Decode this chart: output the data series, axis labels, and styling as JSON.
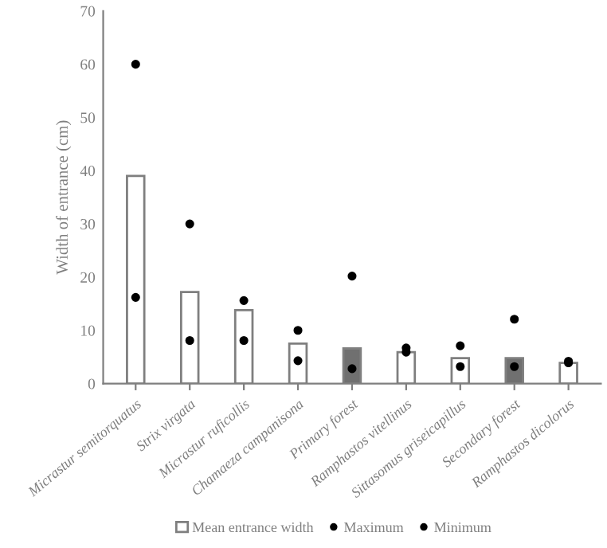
{
  "chart_data": {
    "type": "bar",
    "ylabel": "Width of entrance (cm)",
    "categories": [
      "Micrastur semitorquatus",
      "Strix virgata",
      "Micrastur ruficollis",
      "Chamaeza campanisona",
      "Primary forest",
      "Ramphastos vitellinus",
      "Sittasomus griseicapillus",
      "Secondary forest",
      "Ramphastos dicolorus"
    ],
    "series": [
      {
        "name": "Mean entrance width",
        "colors": [
          "#ffffff",
          "#ffffff",
          "#ffffff",
          "#ffffff",
          "#707070",
          "#ffffff",
          "#ffffff",
          "#707070",
          "#ffffff"
        ],
        "values": [
          39,
          17.2,
          13.8,
          7.5,
          6.6,
          5.9,
          4.8,
          4.8,
          3.9
        ]
      },
      {
        "name": "Maximum",
        "type": "scatter",
        "color": "#000000",
        "values": [
          60,
          30,
          15.6,
          10,
          20.2,
          6.7,
          7.1,
          12.1,
          4.2
        ]
      },
      {
        "name": "Minimum",
        "type": "scatter",
        "color": "#000000",
        "values": [
          16.2,
          8.1,
          8.1,
          4.3,
          2.8,
          5.9,
          3.2,
          3.2,
          3.9
        ]
      }
    ],
    "ylim": [
      0,
      70
    ],
    "yticks": [
      0,
      10,
      20,
      30,
      40,
      50,
      60,
      70
    ],
    "grid": false,
    "legend": "bottom",
    "marker": "circle"
  }
}
